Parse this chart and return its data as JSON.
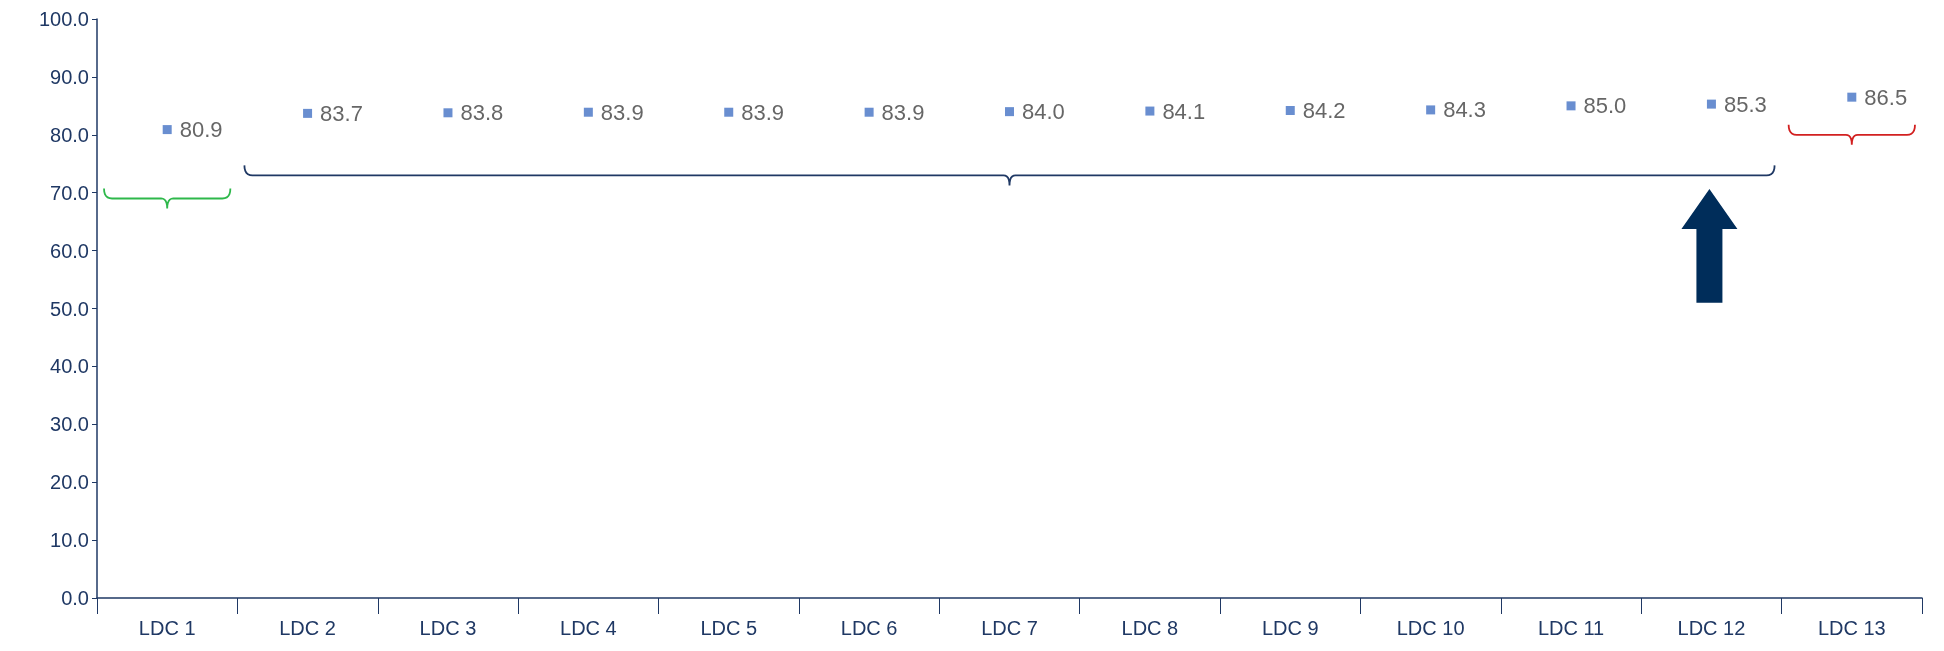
{
  "chart_data": {
    "type": "scatter",
    "categories": [
      "LDC 1",
      "LDC 2",
      "LDC 3",
      "LDC 4",
      "LDC 5",
      "LDC 6",
      "LDC 7",
      "LDC 8",
      "LDC 9",
      "LDC 10",
      "LDC 11",
      "LDC 12",
      "LDC 13"
    ],
    "series": [
      {
        "color": "#4472c4",
        "values": [
          80.9,
          83.7,
          83.8,
          83.9,
          83.9,
          83.9,
          84.0,
          84.1,
          84.2,
          84.3,
          85.0,
          85.3,
          86.5
        ],
        "value_labels": [
          "80.9",
          "83.7",
          "83.8",
          "83.9",
          "83.9",
          "83.9",
          "84.0",
          "84.1",
          "84.2",
          "84.3",
          "85.0",
          "85.3",
          "86.5"
        ]
      }
    ],
    "ylim": [
      0,
      100
    ],
    "yticks": [
      {
        "value": 0,
        "label": "0.0"
      },
      {
        "value": 10,
        "label": "10.0"
      },
      {
        "value": 20,
        "label": "20.0"
      },
      {
        "value": 30,
        "label": "30.0"
      },
      {
        "value": 40,
        "label": "40.0"
      },
      {
        "value": 50,
        "label": "50.0"
      },
      {
        "value": 60,
        "label": "60.0"
      },
      {
        "value": 70,
        "label": "70.0"
      },
      {
        "value": 80,
        "label": "80.0"
      },
      {
        "value": 90,
        "label": "90.0"
      },
      {
        "value": 100,
        "label": "100.0"
      }
    ],
    "grid": false,
    "marker": "square"
  }
}
